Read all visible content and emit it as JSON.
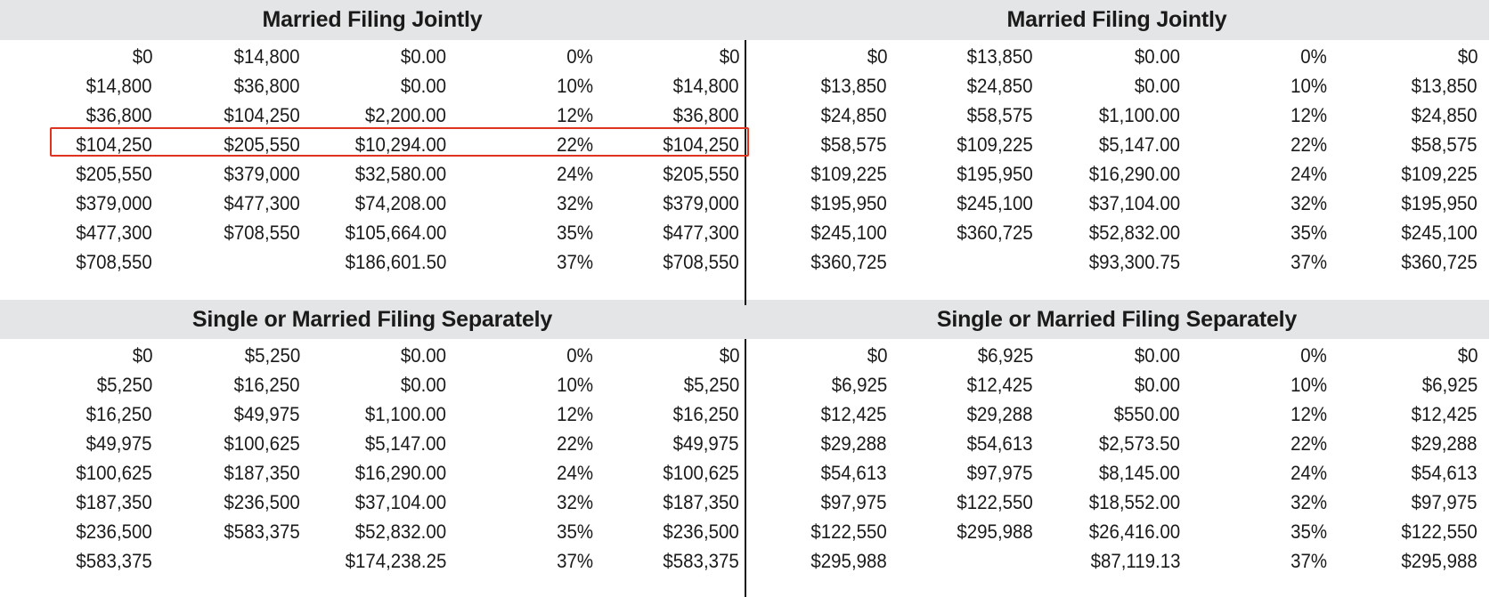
{
  "highlight": {
    "color": "#e0321e",
    "panel": "top_left",
    "row_index": 3
  },
  "band_color": "#e4e5e6",
  "panels": {
    "top_left": {
      "title": "Married Filing Jointly",
      "rows": [
        [
          "$0",
          "$14,800",
          "$0.00",
          "0%",
          "$0"
        ],
        [
          "$14,800",
          "$36,800",
          "$0.00",
          "10%",
          "$14,800"
        ],
        [
          "$36,800",
          "$104,250",
          "$2,200.00",
          "12%",
          "$36,800"
        ],
        [
          "$104,250",
          "$205,550",
          "$10,294.00",
          "22%",
          "$104,250"
        ],
        [
          "$205,550",
          "$379,000",
          "$32,580.00",
          "24%",
          "$205,550"
        ],
        [
          "$379,000",
          "$477,300",
          "$74,208.00",
          "32%",
          "$379,000"
        ],
        [
          "$477,300",
          "$708,550",
          "$105,664.00",
          "35%",
          "$477,300"
        ],
        [
          "$708,550",
          "",
          "$186,601.50",
          "37%",
          "$708,550"
        ]
      ]
    },
    "top_right": {
      "title": "Married Filing Jointly",
      "rows": [
        [
          "$0",
          "$13,850",
          "$0.00",
          "0%",
          "$0"
        ],
        [
          "$13,850",
          "$24,850",
          "$0.00",
          "10%",
          "$13,850"
        ],
        [
          "$24,850",
          "$58,575",
          "$1,100.00",
          "12%",
          "$24,850"
        ],
        [
          "$58,575",
          "$109,225",
          "$5,147.00",
          "22%",
          "$58,575"
        ],
        [
          "$109,225",
          "$195,950",
          "$16,290.00",
          "24%",
          "$109,225"
        ],
        [
          "$195,950",
          "$245,100",
          "$37,104.00",
          "32%",
          "$195,950"
        ],
        [
          "$245,100",
          "$360,725",
          "$52,832.00",
          "35%",
          "$245,100"
        ],
        [
          "$360,725",
          "",
          "$93,300.75",
          "37%",
          "$360,725"
        ]
      ]
    },
    "bottom_left": {
      "title": "Single or Married Filing Separately",
      "rows": [
        [
          "$0",
          "$5,250",
          "$0.00",
          "0%",
          "$0"
        ],
        [
          "$5,250",
          "$16,250",
          "$0.00",
          "10%",
          "$5,250"
        ],
        [
          "$16,250",
          "$49,975",
          "$1,100.00",
          "12%",
          "$16,250"
        ],
        [
          "$49,975",
          "$100,625",
          "$5,147.00",
          "22%",
          "$49,975"
        ],
        [
          "$100,625",
          "$187,350",
          "$16,290.00",
          "24%",
          "$100,625"
        ],
        [
          "$187,350",
          "$236,500",
          "$37,104.00",
          "32%",
          "$187,350"
        ],
        [
          "$236,500",
          "$583,375",
          "$52,832.00",
          "35%",
          "$236,500"
        ],
        [
          "$583,375",
          "",
          "$174,238.25",
          "37%",
          "$583,375"
        ]
      ]
    },
    "bottom_right": {
      "title": "Single or Married Filing Separately",
      "rows": [
        [
          "$0",
          "$6,925",
          "$0.00",
          "0%",
          "$0"
        ],
        [
          "$6,925",
          "$12,425",
          "$0.00",
          "10%",
          "$6,925"
        ],
        [
          "$12,425",
          "$29,288",
          "$550.00",
          "12%",
          "$12,425"
        ],
        [
          "$29,288",
          "$54,613",
          "$2,573.50",
          "22%",
          "$29,288"
        ],
        [
          "$54,613",
          "$97,975",
          "$8,145.00",
          "24%",
          "$54,613"
        ],
        [
          "$97,975",
          "$122,550",
          "$18,552.00",
          "32%",
          "$97,975"
        ],
        [
          "$122,550",
          "$295,988",
          "$26,416.00",
          "35%",
          "$122,550"
        ],
        [
          "$295,988",
          "",
          "$87,119.13",
          "37%",
          "$295,988"
        ]
      ]
    }
  }
}
